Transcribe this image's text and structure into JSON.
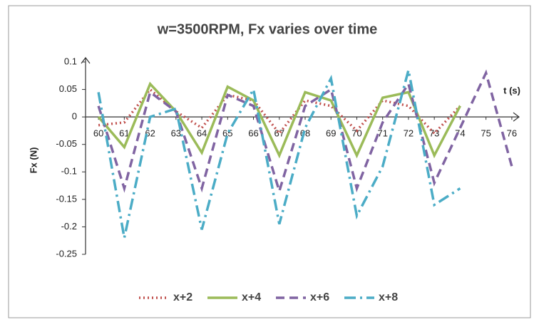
{
  "chart_data": {
    "type": "line",
    "title": "w=3500RPM, Fx varies over time",
    "xlabel": "t (s)",
    "ylabel": "Fx (N)",
    "x": [
      60,
      61,
      62,
      63,
      64,
      65,
      66,
      67,
      68,
      69,
      70,
      71,
      72,
      73,
      74,
      75,
      76
    ],
    "xlim": [
      59.5,
      76.5
    ],
    "xticks": [
      60,
      61,
      62,
      63,
      64,
      65,
      66,
      67,
      68,
      69,
      70,
      71,
      72,
      73,
      74,
      75,
      76
    ],
    "ylim": [
      -0.25,
      0.1
    ],
    "yticks": [
      0.1,
      0.05,
      0,
      -0.05,
      -0.1,
      -0.15,
      -0.2,
      -0.25
    ],
    "grid": false,
    "legend": "bottom",
    "series": [
      {
        "name": "x+2",
        "color": "#c0504d",
        "dash": "dotted",
        "values": [
          -0.015,
          -0.01,
          0.05,
          0.01,
          -0.02,
          0.04,
          0.03,
          -0.03,
          0.03,
          0.02,
          -0.025,
          0.03,
          0.02,
          -0.03,
          0.02,
          null,
          null
        ]
      },
      {
        "name": "x+4",
        "color": "#9bbb59",
        "dash": "solid",
        "values": [
          0.0,
          -0.055,
          0.06,
          0.01,
          -0.065,
          0.055,
          0.03,
          -0.07,
          0.045,
          0.03,
          -0.07,
          0.035,
          0.045,
          -0.07,
          0.02,
          null,
          null
        ]
      },
      {
        "name": "x+6",
        "color": "#8064a2",
        "dash": "dashed",
        "values": [
          0.02,
          -0.13,
          0.045,
          0.01,
          -0.13,
          0.04,
          0.02,
          -0.135,
          0.02,
          0.05,
          -0.13,
          -0.01,
          0.06,
          -0.12,
          -0.02,
          0.08,
          -0.09
        ]
      },
      {
        "name": "x+8",
        "color": "#4bacc6",
        "dash": "dashdot",
        "values": [
          0.045,
          -0.22,
          0.0,
          0.015,
          -0.205,
          -0.03,
          0.05,
          -0.195,
          -0.02,
          0.07,
          -0.18,
          -0.09,
          0.085,
          -0.16,
          -0.13,
          null,
          null
        ]
      }
    ]
  }
}
